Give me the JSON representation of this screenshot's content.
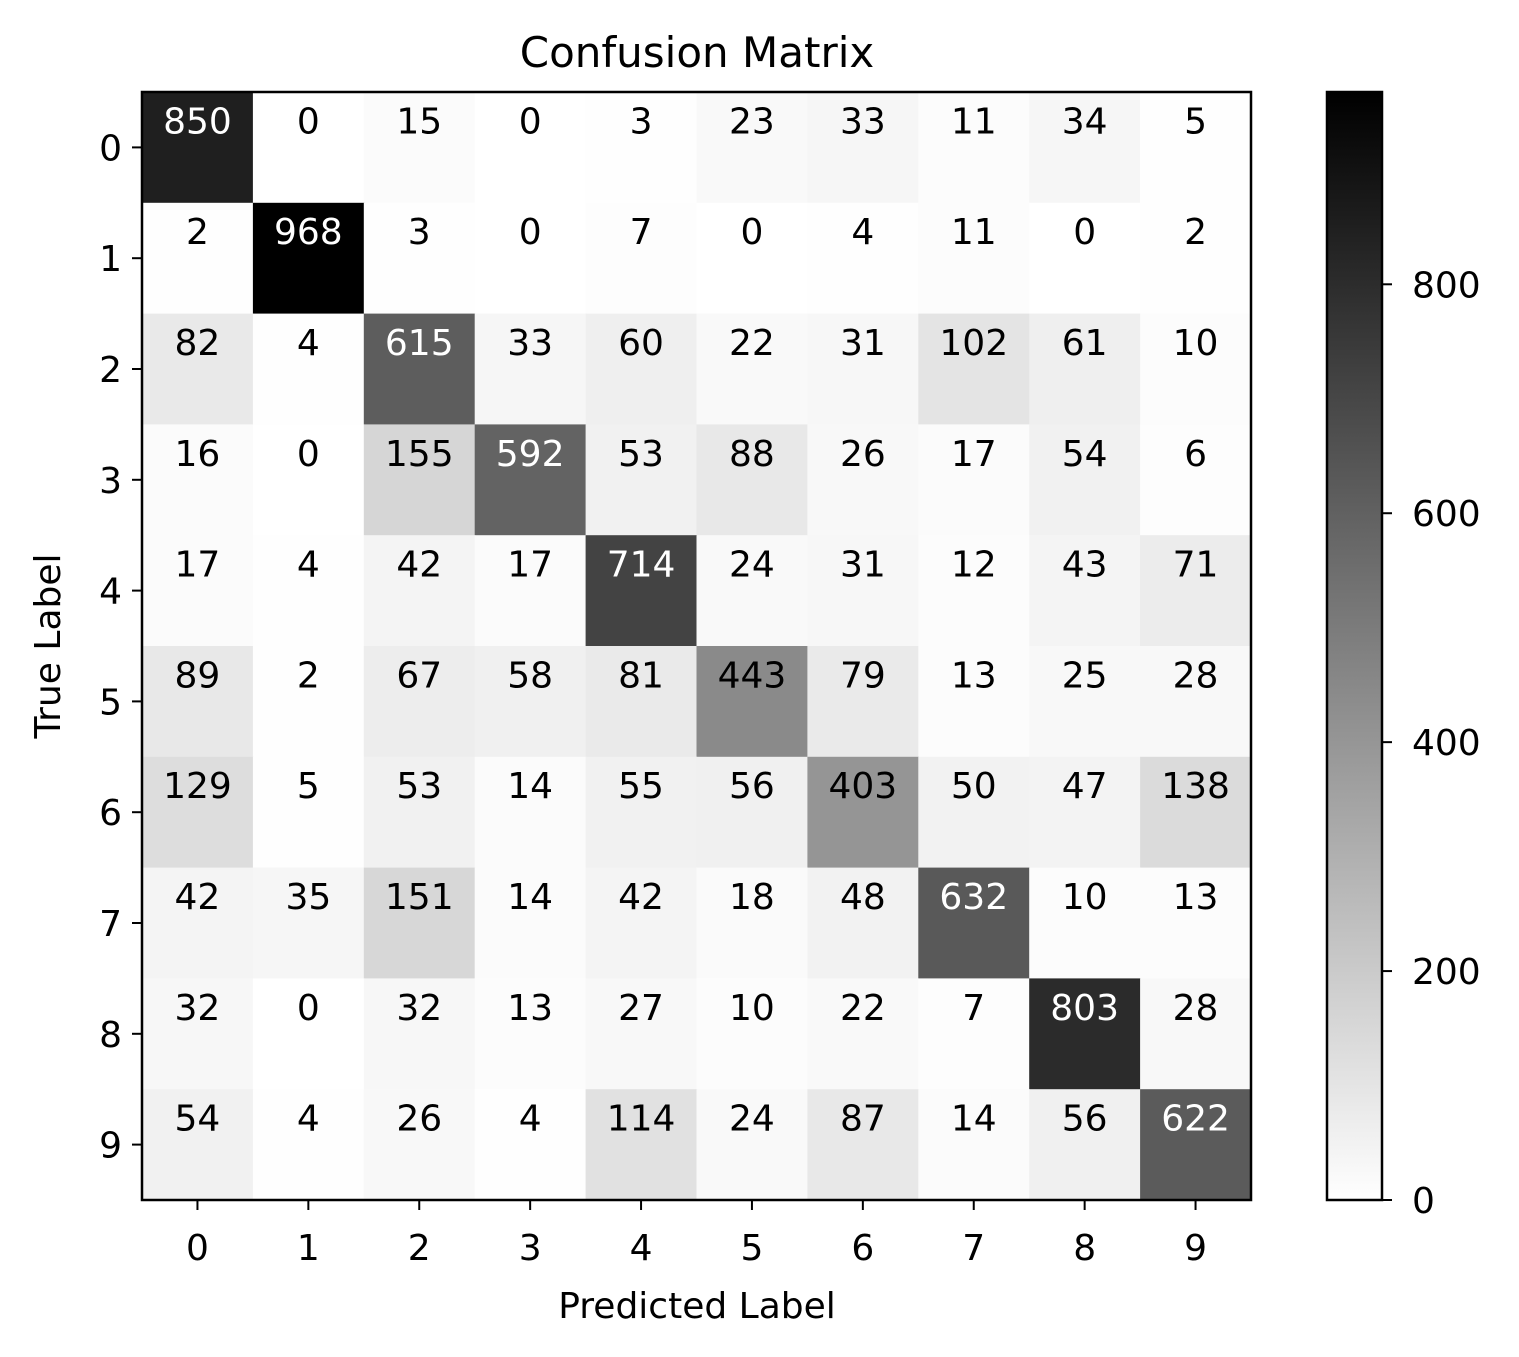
{
  "chart_data": {
    "type": "heatmap",
    "title": "Confusion Matrix",
    "xlabel": "Predicted Label",
    "ylabel": "True Label",
    "x_categories": [
      "0",
      "1",
      "2",
      "3",
      "4",
      "5",
      "6",
      "7",
      "8",
      "9"
    ],
    "y_categories": [
      "0",
      "1",
      "2",
      "3",
      "4",
      "5",
      "6",
      "7",
      "8",
      "9"
    ],
    "values": [
      [
        850,
        0,
        15,
        0,
        3,
        23,
        33,
        11,
        34,
        5
      ],
      [
        2,
        968,
        3,
        0,
        7,
        0,
        4,
        11,
        0,
        2
      ],
      [
        82,
        4,
        615,
        33,
        60,
        22,
        31,
        102,
        61,
        10
      ],
      [
        16,
        0,
        155,
        592,
        53,
        88,
        26,
        17,
        54,
        6
      ],
      [
        17,
        4,
        42,
        17,
        714,
        24,
        31,
        12,
        43,
        71
      ],
      [
        89,
        2,
        67,
        58,
        81,
        443,
        79,
        13,
        25,
        28
      ],
      [
        129,
        5,
        53,
        14,
        55,
        56,
        403,
        50,
        47,
        138
      ],
      [
        42,
        35,
        151,
        14,
        42,
        18,
        48,
        632,
        10,
        13
      ],
      [
        32,
        0,
        32,
        13,
        27,
        10,
        22,
        7,
        803,
        28
      ],
      [
        54,
        4,
        26,
        4,
        114,
        24,
        87,
        14,
        56,
        622
      ]
    ],
    "colormap": "white-to-black",
    "value_range": [
      0,
      968
    ],
    "colorbar": {
      "ticks": [
        0,
        200,
        400,
        600,
        800
      ],
      "tick_labels": [
        "0",
        "200",
        "400",
        "600",
        "800"
      ]
    },
    "text_color_dark": "#000000",
    "text_color_light": "#ffffff"
  }
}
